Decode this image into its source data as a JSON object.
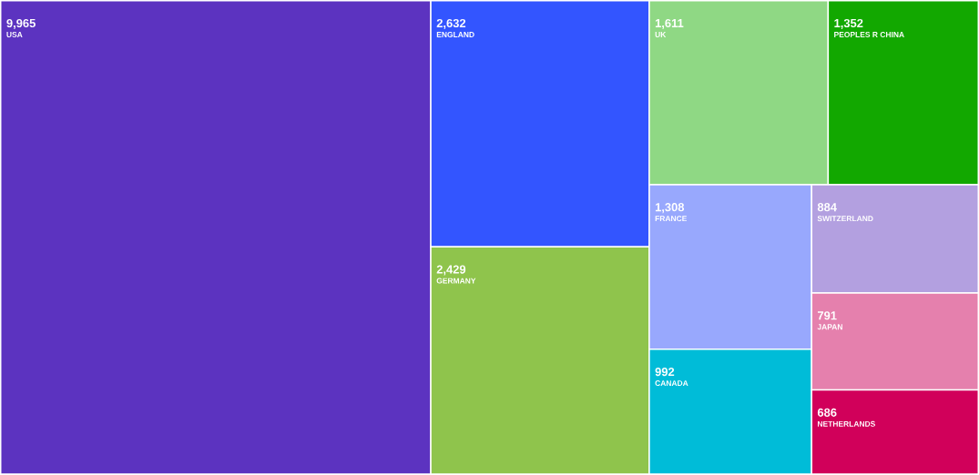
{
  "chart_data": {
    "type": "other",
    "categories": [
      "USA",
      "ENGLAND",
      "GERMANY",
      "UK",
      "PEOPLES R CHINA",
      "FRANCE",
      "CANADA",
      "SWITZERLAND",
      "JAPAN",
      "NETHERLANDS"
    ],
    "values": [
      9965,
      2632,
      2429,
      1611,
      1352,
      1308,
      992,
      884,
      791,
      686
    ],
    "value_labels": [
      "9,965",
      "2,632",
      "2,429",
      "1,611",
      "1,352",
      "1,308",
      "992",
      "884",
      "791",
      "686"
    ],
    "colors": [
      "#5c33c0",
      "#3355ff",
      "#8fc44c",
      "#8fd884",
      "#12a800",
      "#98a8fd",
      "#00bcd8",
      "#b3a0e0",
      "#e580ad",
      "#d1005a"
    ]
  }
}
